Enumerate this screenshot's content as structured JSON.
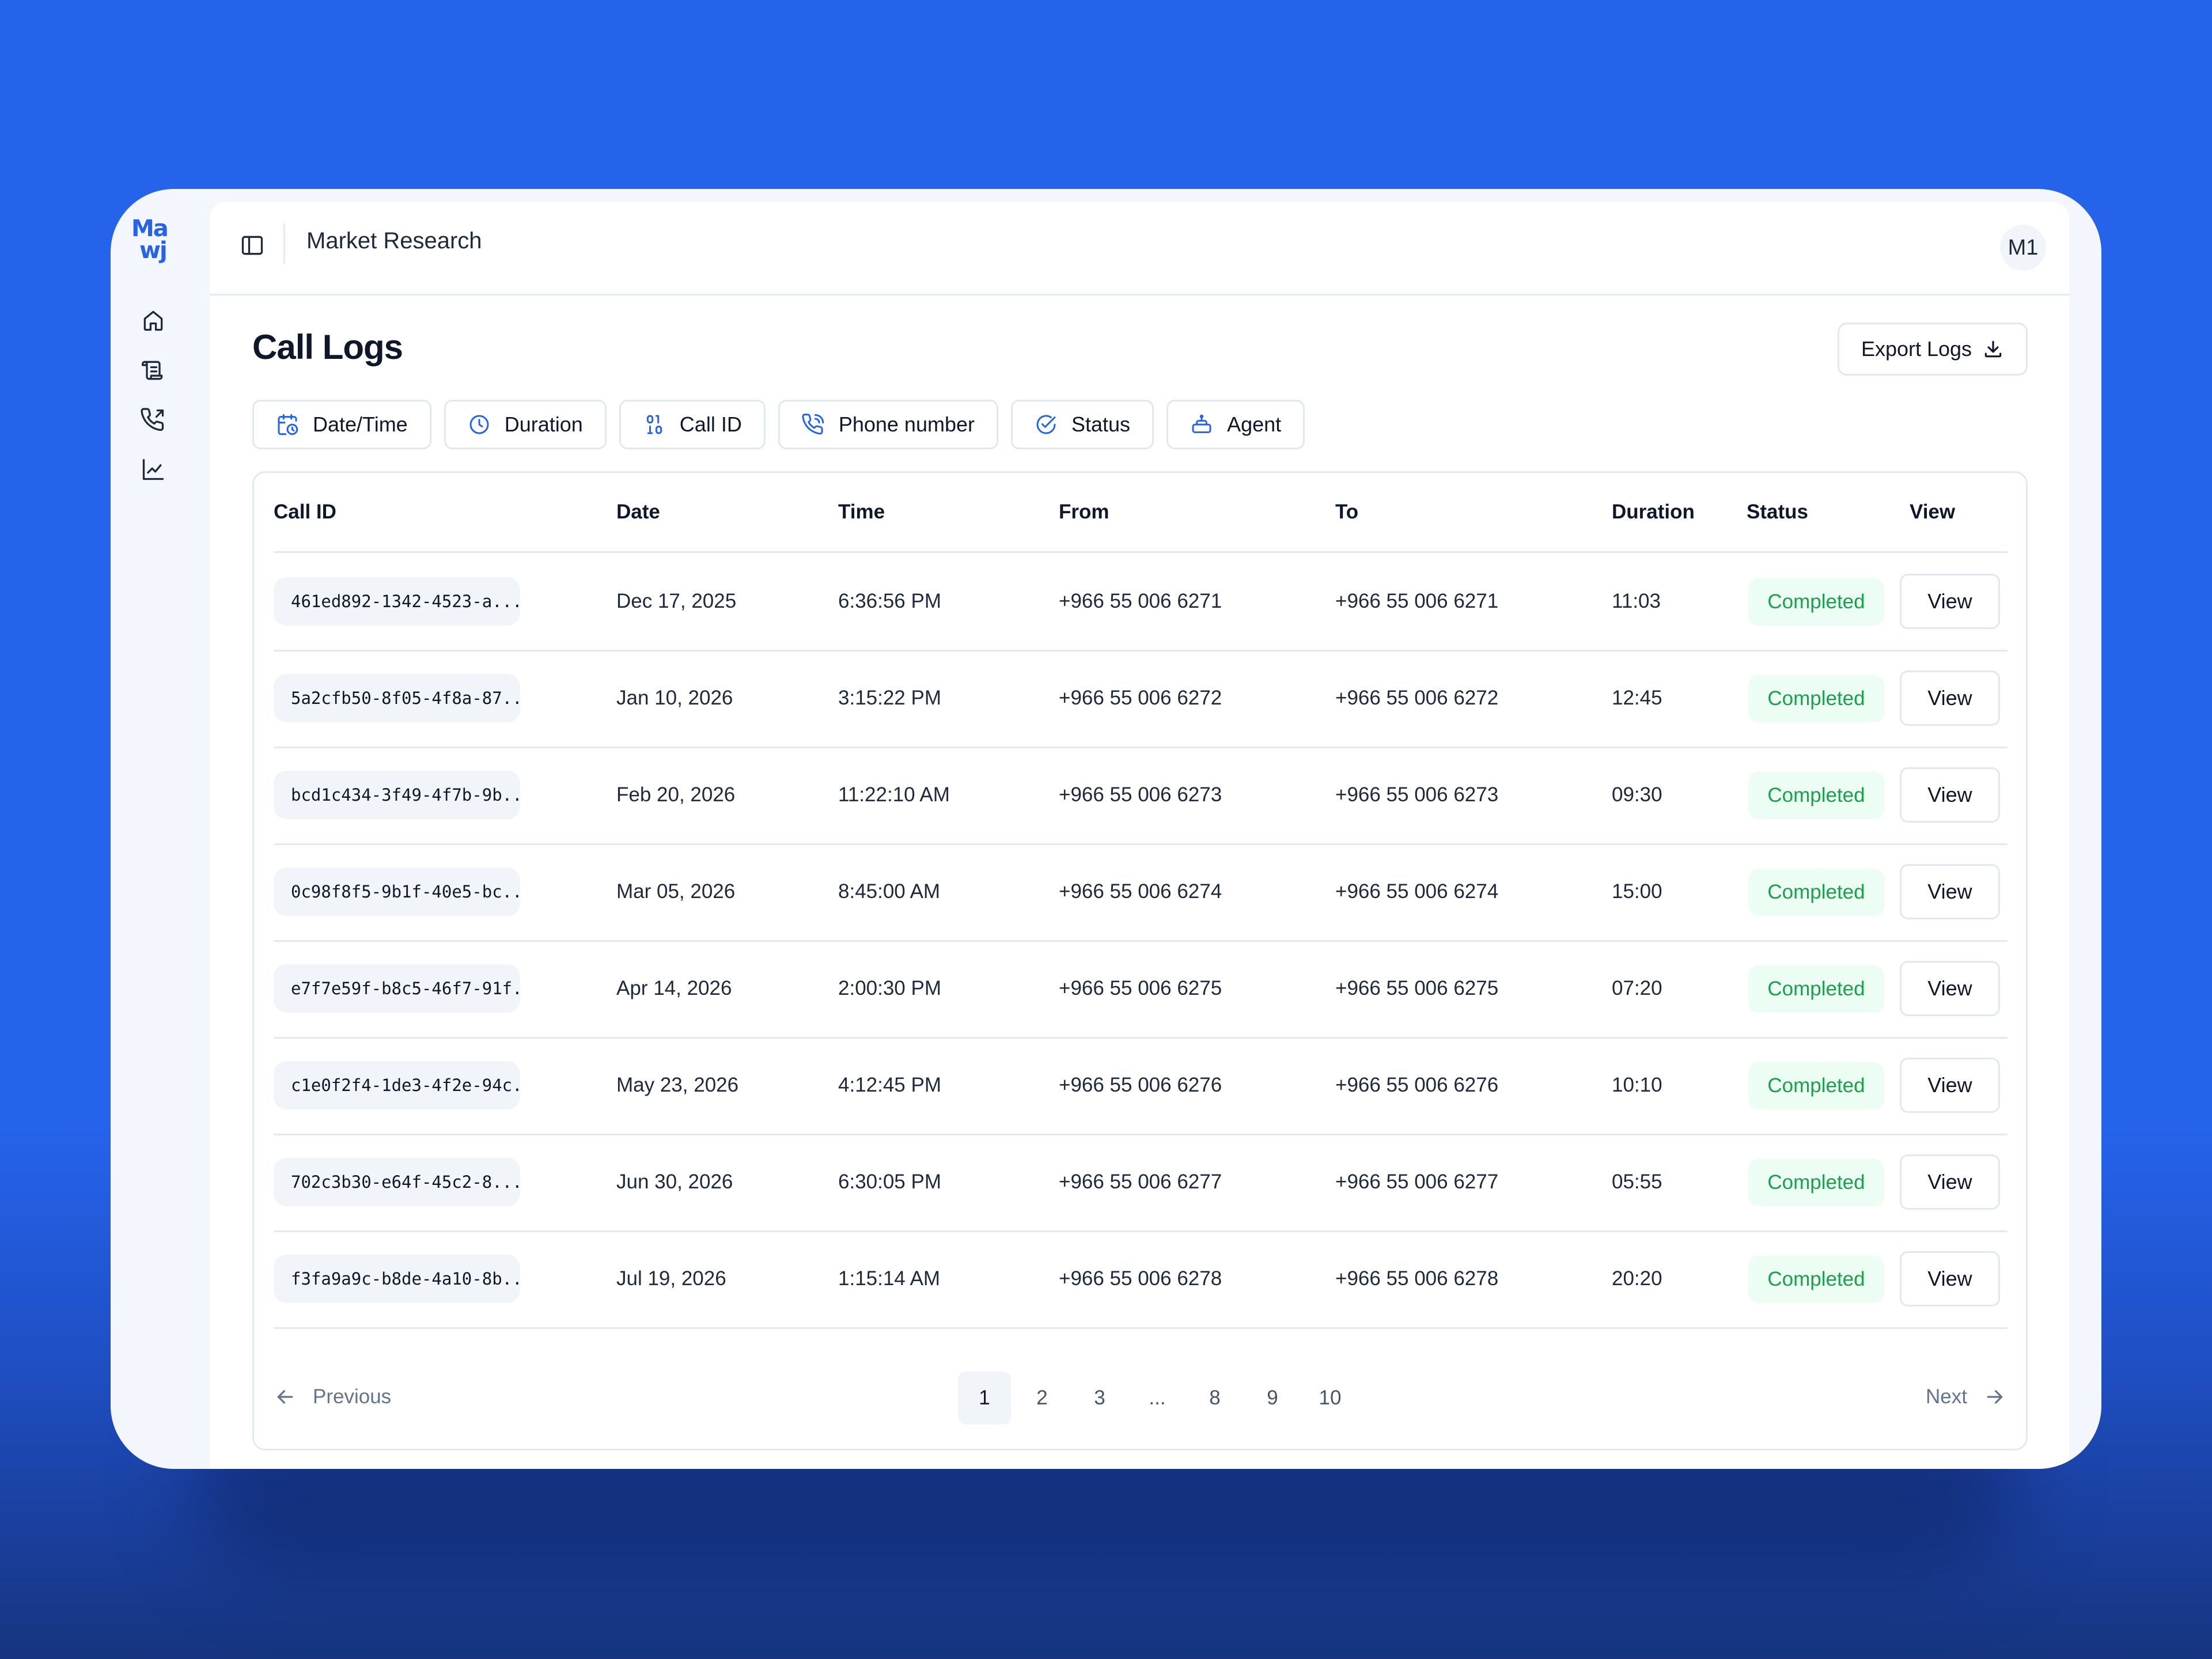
{
  "app": {
    "logo_line1": "Ma",
    "logo_line2": "wj",
    "workspace": "Market Research",
    "avatar_initials": "M1"
  },
  "sidebar": {
    "items": [
      {
        "icon": "home-icon"
      },
      {
        "icon": "scroll-icon"
      },
      {
        "icon": "phone-outgoing-icon"
      },
      {
        "icon": "chart-line-icon"
      }
    ]
  },
  "page": {
    "title": "Call Logs",
    "export_label": "Export Logs"
  },
  "filters": [
    {
      "label": "Date/Time",
      "icon": "calendar-clock-icon"
    },
    {
      "label": "Duration",
      "icon": "clock-icon"
    },
    {
      "label": "Call ID",
      "icon": "id-icon"
    },
    {
      "label": "Phone number",
      "icon": "phone-icon"
    },
    {
      "label": "Status",
      "icon": "check-circle-icon"
    },
    {
      "label": "Agent",
      "icon": "bot-icon"
    }
  ],
  "table": {
    "columns": [
      "Call ID",
      "Date",
      "Time",
      "From",
      "To",
      "Duration",
      "Status",
      "View"
    ],
    "rows": [
      {
        "id": "461ed892-1342-4523-a...",
        "date": "Dec 17, 2025",
        "time": "6:36:56 PM",
        "from": "+966 55 006 6271",
        "to": "+966 55 006 6271",
        "duration": "11:03",
        "status": "Completed",
        "action": "View"
      },
      {
        "id": "5a2cfb50-8f05-4f8a-87...",
        "date": "Jan 10, 2026",
        "time": "3:15:22 PM",
        "from": "+966 55 006 6272",
        "to": "+966 55 006 6272",
        "duration": "12:45",
        "status": "Completed",
        "action": "View"
      },
      {
        "id": "bcd1c434-3f49-4f7b-9b...",
        "date": "Feb 20, 2026",
        "time": "11:22:10 AM",
        "from": "+966 55 006 6273",
        "to": "+966 55 006 6273",
        "duration": "09:30",
        "status": "Completed",
        "action": "View"
      },
      {
        "id": "0c98f8f5-9b1f-40e5-bc...",
        "date": "Mar 05, 2026",
        "time": "8:45:00 AM",
        "from": "+966 55 006 6274",
        "to": "+966 55 006 6274",
        "duration": "15:00",
        "status": "Completed",
        "action": "View"
      },
      {
        "id": "e7f7e59f-b8c5-46f7-91f...",
        "date": "Apr 14, 2026",
        "time": "2:00:30 PM",
        "from": "+966 55 006 6275",
        "to": "+966 55 006 6275",
        "duration": "07:20",
        "status": "Completed",
        "action": "View"
      },
      {
        "id": "c1e0f2f4-1de3-4f2e-94c...",
        "date": "May 23, 2026",
        "time": "4:12:45 PM",
        "from": "+966 55 006 6276",
        "to": "+966 55 006 6276",
        "duration": "10:10",
        "status": "Completed",
        "action": "View"
      },
      {
        "id": "702c3b30-e64f-45c2-8...",
        "date": "Jun 30, 2026",
        "time": "6:30:05 PM",
        "from": "+966 55 006 6277",
        "to": "+966 55 006 6277",
        "duration": "05:55",
        "status": "Completed",
        "action": "View"
      },
      {
        "id": "f3fa9a9c-b8de-4a10-8b...",
        "date": "Jul 19, 2026",
        "time": "1:15:14 AM",
        "from": "+966 55 006 6278",
        "to": "+966 55 006 6278",
        "duration": "20:20",
        "status": "Completed",
        "action": "View"
      }
    ]
  },
  "pagination": {
    "previous_label": "Previous",
    "next_label": "Next",
    "pages": [
      "1",
      "2",
      "3",
      "...",
      "8",
      "9",
      "10"
    ],
    "current_page": "1"
  },
  "colors": {
    "background": "#2563eb",
    "accent": "#2563eb",
    "status_completed_text": "#16a34a",
    "status_completed_bg": "#ecfdf3"
  }
}
